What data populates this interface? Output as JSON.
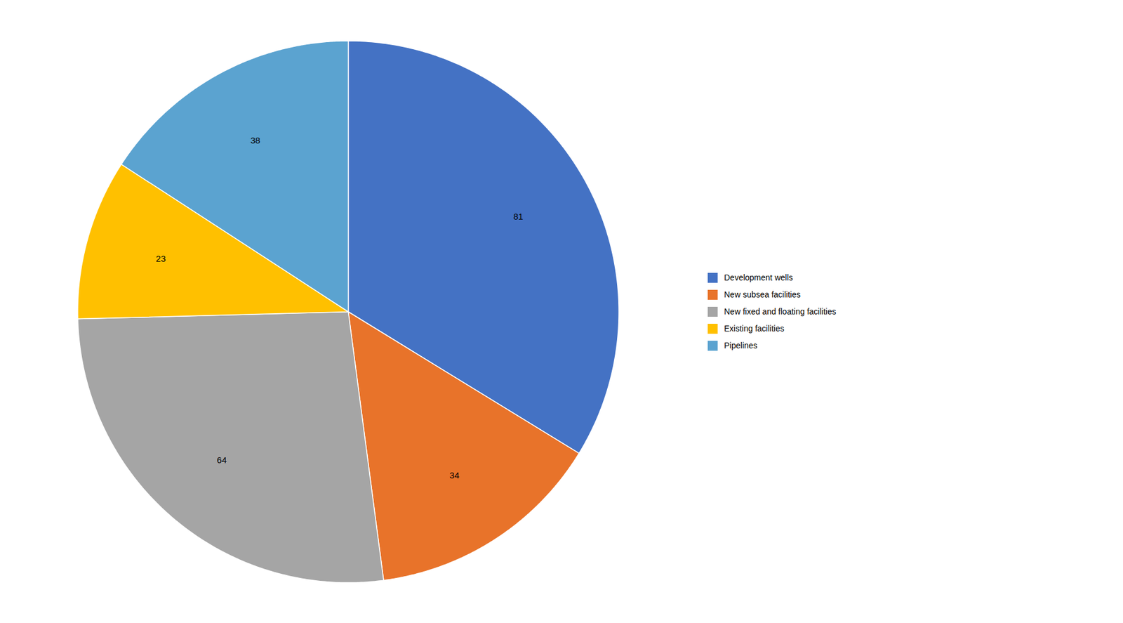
{
  "chart_data": {
    "type": "pie",
    "categories": [
      "Development wells",
      "New subsea facilities",
      "New fixed and floating facilities",
      "Existing facilities",
      "Pipelines"
    ],
    "values": [
      81,
      34,
      64,
      23,
      38
    ],
    "colors": [
      "#4472C4",
      "#E8732A",
      "#A5A5A5",
      "#FFC000",
      "#5BA3D0"
    ],
    "data_labels": true,
    "legend": "right"
  }
}
